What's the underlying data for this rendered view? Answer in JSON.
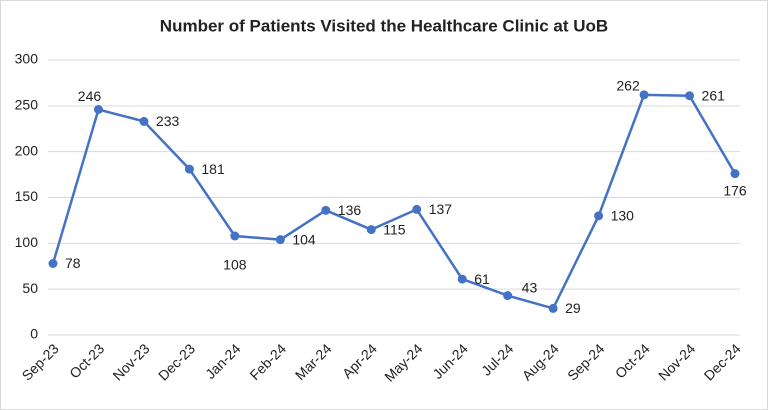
{
  "chart_data": {
    "type": "line",
    "title": "Number of Patients Visited the Healthcare Clinic at UoB",
    "categories": [
      "Sep-23",
      "Oct-23",
      "Nov-23",
      "Dec-23",
      "Jan-24",
      "Feb-24",
      "Mar-24",
      "Apr-24",
      "May-24",
      "Jun-24",
      "Jul-24",
      "Aug-24",
      "Sep-24",
      "Oct-24",
      "Nov-24",
      "Dec-24"
    ],
    "values": [
      78,
      246,
      233,
      181,
      108,
      104,
      136,
      115,
      137,
      61,
      43,
      29,
      130,
      262,
      261,
      176
    ],
    "color": "#4472c4",
    "ylim": [
      0,
      300
    ],
    "yticks": [
      0,
      50,
      100,
      150,
      200,
      250,
      300
    ],
    "grid": true
  }
}
